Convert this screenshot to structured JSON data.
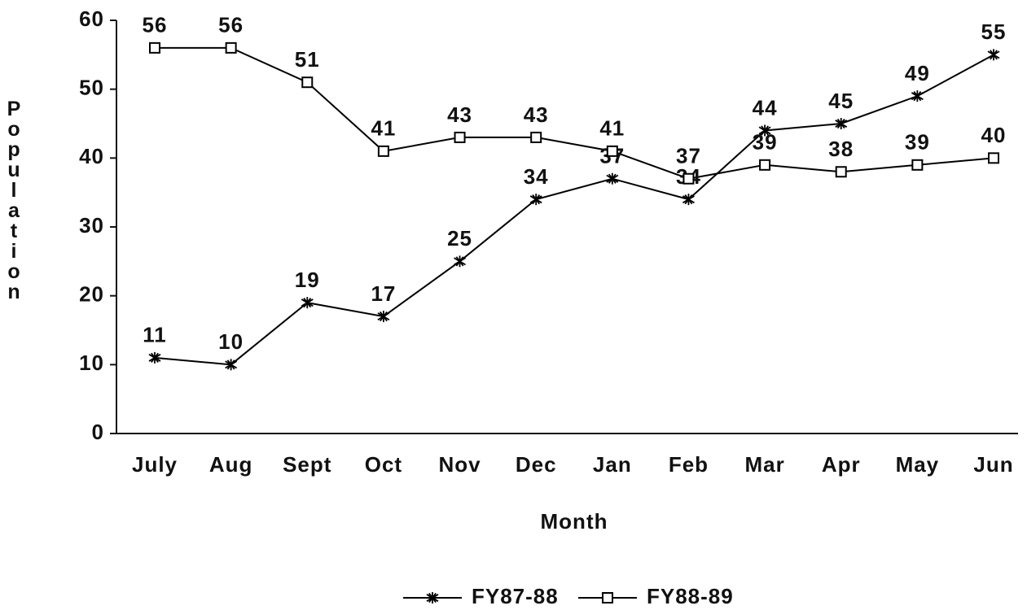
{
  "chart_data": {
    "type": "line",
    "x_label": "Month",
    "y_label": "Population",
    "categories": [
      "July",
      "Aug",
      "Sept",
      "Oct",
      "Nov",
      "Dec",
      "Jan",
      "Feb",
      "Mar",
      "Apr",
      "May",
      "Jun"
    ],
    "series": [
      {
        "name": "FY87-88",
        "color": "#000000",
        "marker": "asterisk",
        "values": [
          11,
          10,
          19,
          17,
          25,
          34,
          37,
          34,
          44,
          45,
          49,
          55
        ]
      },
      {
        "name": "FY88-89",
        "color": "#000000",
        "marker": "square",
        "values": [
          56,
          56,
          51,
          41,
          43,
          43,
          41,
          37,
          39,
          38,
          39,
          40
        ]
      }
    ],
    "ylim": [
      0,
      60
    ],
    "yticks": [
      0,
      10,
      20,
      30,
      40,
      50,
      60
    ],
    "grid": false,
    "legend": "bottom"
  }
}
